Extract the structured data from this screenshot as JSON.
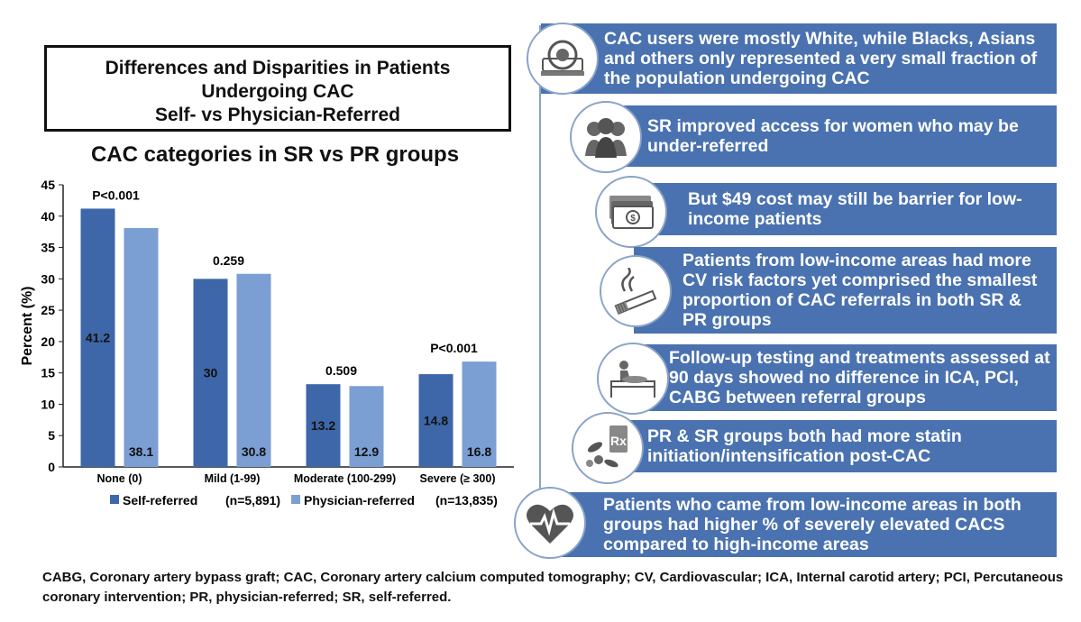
{
  "title": {
    "line1": "Differences and Disparities in Patients",
    "line2": "Undergoing CAC",
    "line3": "Self- vs Physician-Referred"
  },
  "chart_data": {
    "type": "bar",
    "title": "CAC categories in SR vs PR groups",
    "ylabel": "Percent (%)",
    "ylim": [
      0,
      45
    ],
    "yticks": [
      0,
      5,
      10,
      15,
      20,
      25,
      30,
      35,
      40,
      45
    ],
    "categories": [
      "None (0)",
      "Mild (1-99)",
      "Moderate (100-299)",
      "Severe (≥ 300)"
    ],
    "series": [
      {
        "name": "Self-referred",
        "n_label": "(n=5,891)",
        "color": "#3d67a8",
        "values": [
          41.2,
          30,
          13.2,
          14.8
        ]
      },
      {
        "name": "Physician-referred",
        "n_label": "(n=13,835)",
        "color": "#7b9ed3",
        "values": [
          38.1,
          30.8,
          12.9,
          16.8
        ]
      }
    ],
    "pvalues": [
      "P<0.001",
      "0.259",
      "0.509",
      "P<0.001"
    ],
    "grid": false,
    "legend_position": "bottom"
  },
  "findings": [
    {
      "icon": "ct-scanner-icon",
      "text": "CAC users were mostly White, while Blacks, Asians and others only represented a very small fraction of the population undergoing CAC"
    },
    {
      "icon": "women-group-icon",
      "text": "SR improved access for women who may be under-referred"
    },
    {
      "icon": "money-icon",
      "text": "But $49 cost may still be barrier for low-income patients"
    },
    {
      "icon": "cigarette-icon",
      "text": "Patients from low-income areas had more CV risk factors yet comprised the smallest proportion of CAC referrals in both SR & PR groups"
    },
    {
      "icon": "patient-bed-icon",
      "text": "Follow-up testing and treatments assessed at 90 days showed no difference in ICA, PCI, CABG between referral groups"
    },
    {
      "icon": "prescription-pills-icon",
      "text": "PR & SR groups both had more statin initiation/intensification post-CAC"
    },
    {
      "icon": "heart-pulse-icon",
      "text": "Patients who came from low-income areas in both groups had higher % of severely elevated CACS compared to high-income areas"
    }
  ],
  "footnote": "CABG, Coronary artery bypass graft; CAC, Coronary artery calcium computed tomography; CV, Cardiovascular; ICA, Internal carotid artery; PCI, Percutaneous coronary intervention; PR, physician-referred; SR, self-referred."
}
